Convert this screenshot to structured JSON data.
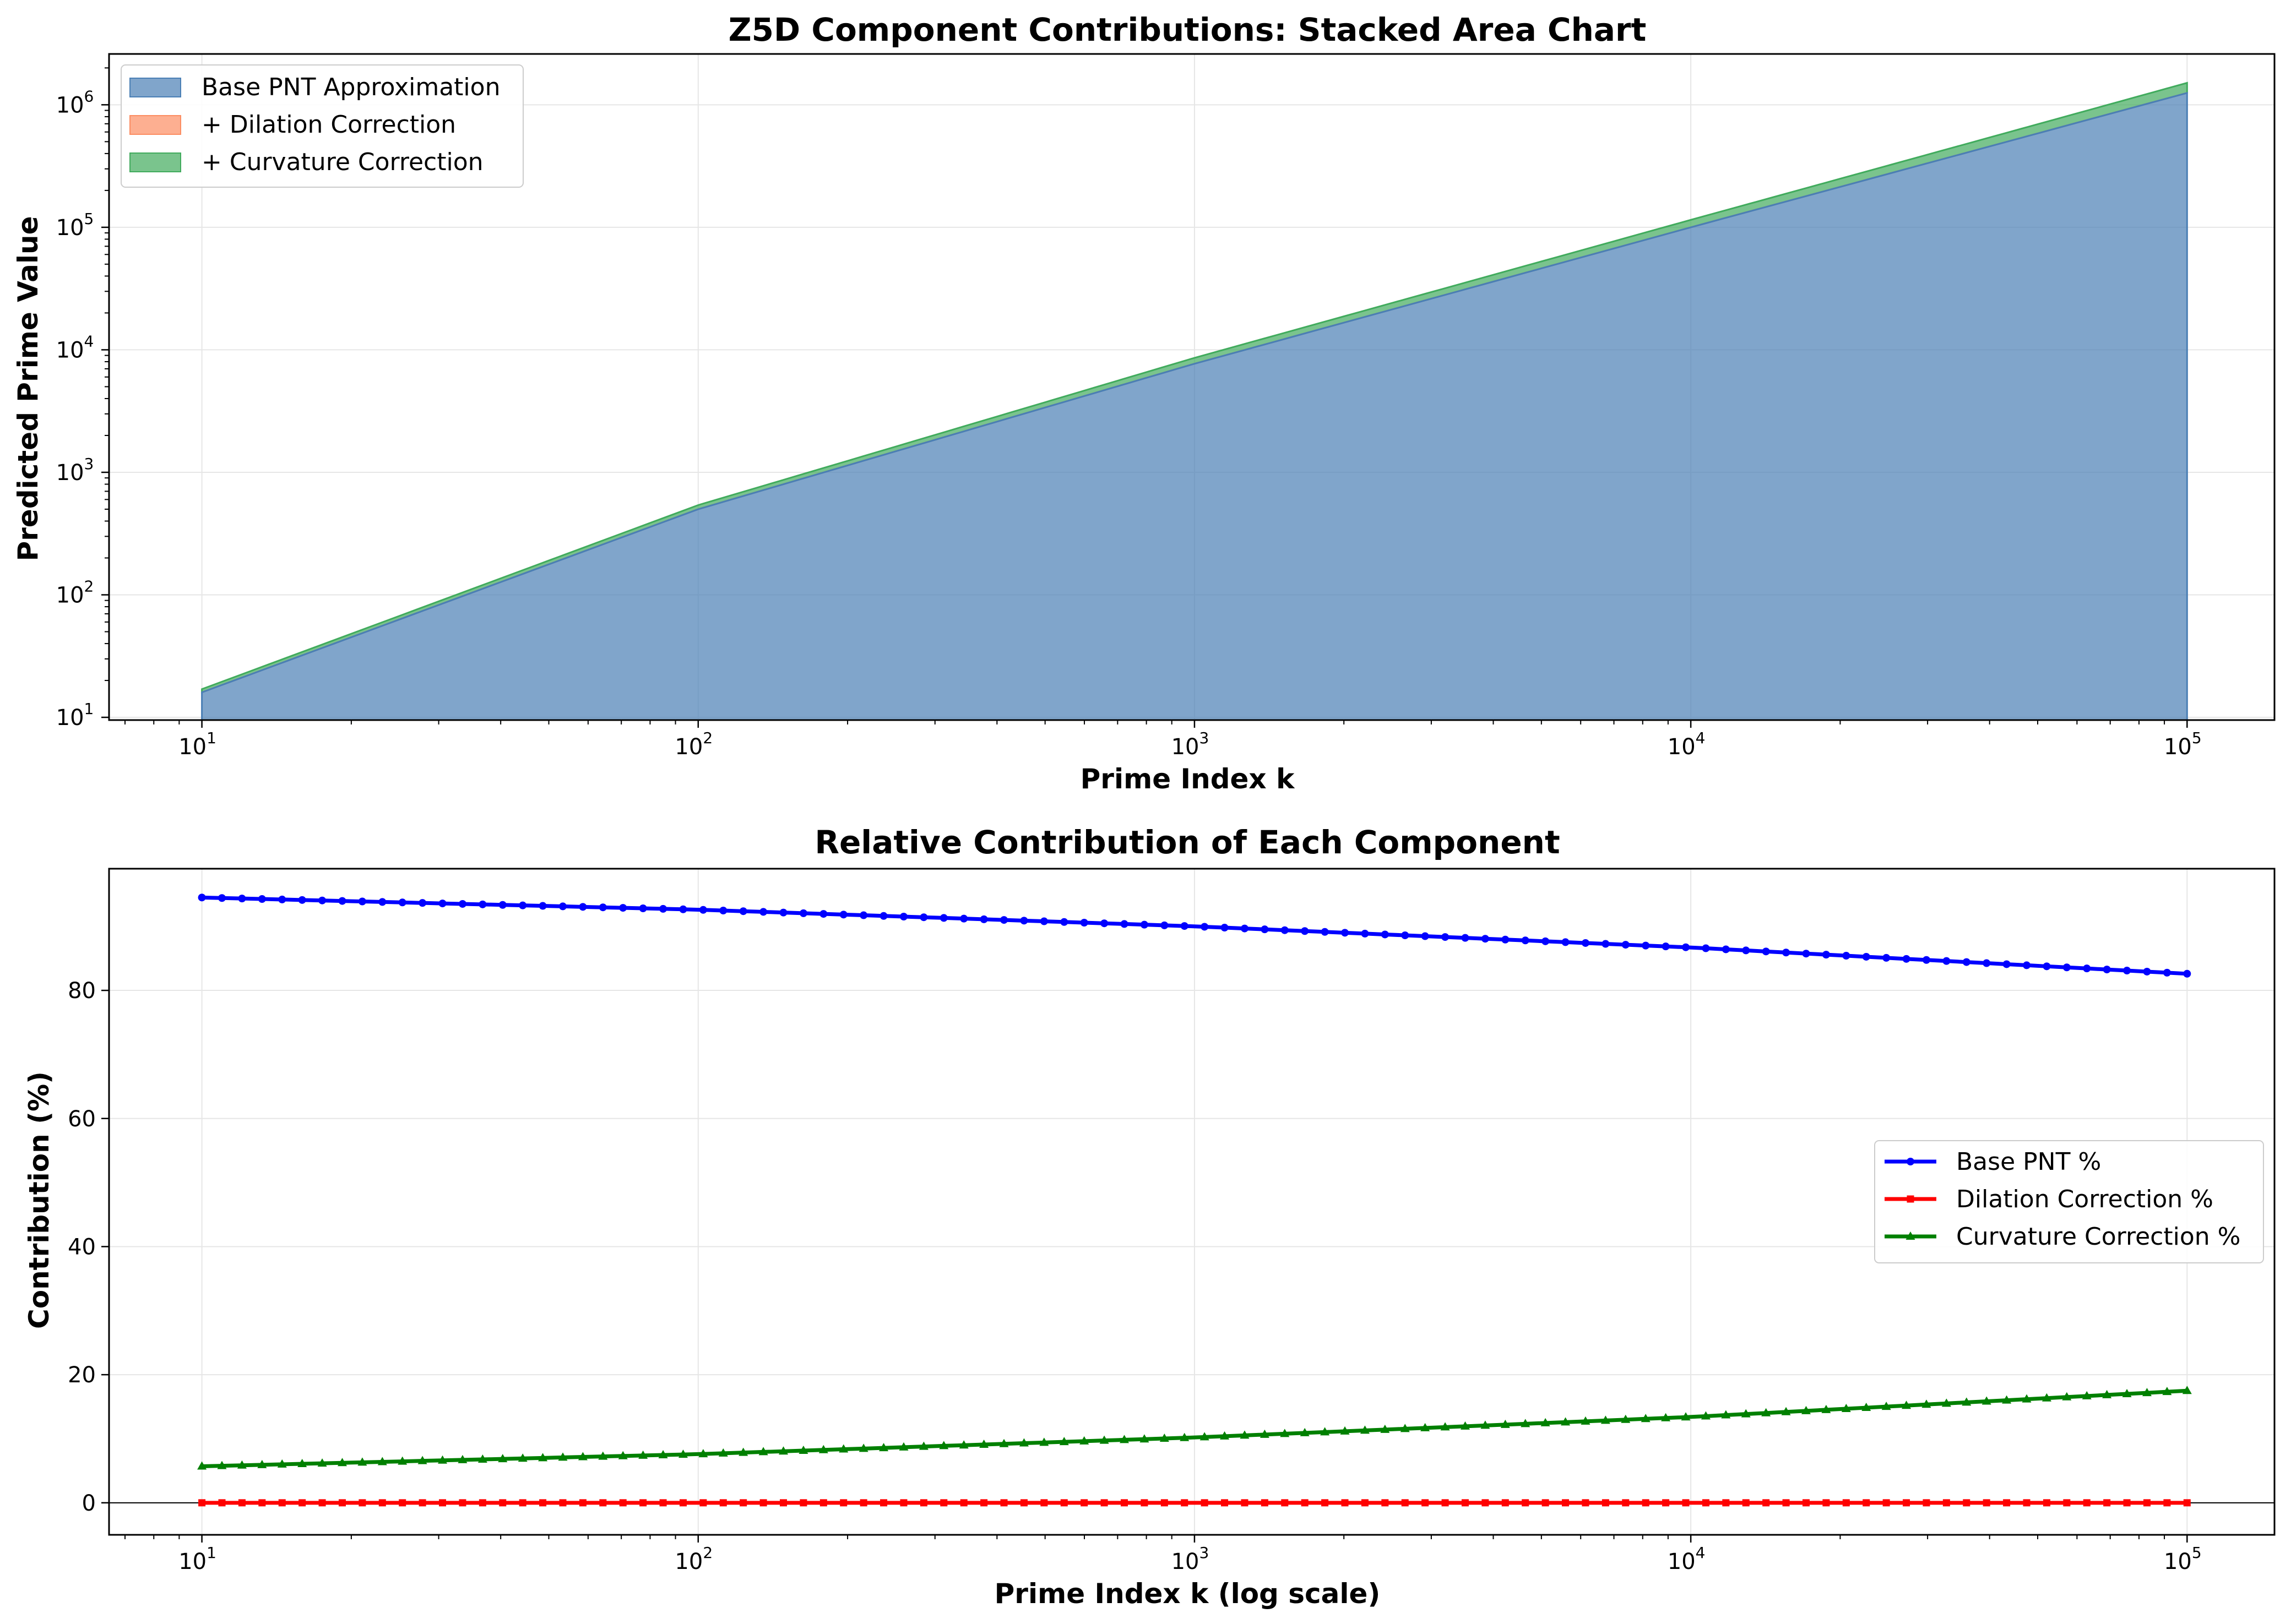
{
  "chart_data": [
    {
      "type": "area",
      "stacked": true,
      "title": "Z5D Component Contributions: Stacked Area Chart",
      "xlabel": "Prime Index k",
      "ylabel": "Predicted Prime Value",
      "xscale": "log",
      "yscale": "log",
      "xlim": [
        6.5,
        150000
      ],
      "ylim": [
        9.5,
        2600000
      ],
      "xticks": [
        {
          "base": "10",
          "exp": "1"
        },
        {
          "base": "10",
          "exp": "2"
        },
        {
          "base": "10",
          "exp": "3"
        },
        {
          "base": "10",
          "exp": "4"
        },
        {
          "base": "10",
          "exp": "5"
        }
      ],
      "yticks": [
        {
          "base": "10",
          "exp": "1"
        },
        {
          "base": "10",
          "exp": "2"
        },
        {
          "base": "10",
          "exp": "3"
        },
        {
          "base": "10",
          "exp": "4"
        },
        {
          "base": "10",
          "exp": "5"
        },
        {
          "base": "10",
          "exp": "6"
        }
      ],
      "grid": true,
      "legend_position": "upper-left",
      "x": [
        10,
        100,
        1000,
        10000,
        100000
      ],
      "series": [
        {
          "name": "Base PNT Approximation",
          "color": "#4a7fb5",
          "values": [
            16,
            500,
            7700,
            100000,
            1250000
          ]
        },
        {
          "name": "+ Dilation Correction",
          "color": "#fc8d62",
          "values": [
            0,
            0,
            0,
            0,
            0
          ]
        },
        {
          "name": "+ Curvature Correction",
          "color": "#41ab5d",
          "values": [
            1,
            40,
            900,
            15000,
            260000
          ]
        }
      ]
    },
    {
      "type": "line",
      "title": "Relative Contribution of Each Component",
      "xlabel": "Prime Index k (log scale)",
      "ylabel": "Contribution (%)",
      "xscale": "log",
      "xlim": [
        6.5,
        150000
      ],
      "ylim": [
        -5,
        99
      ],
      "xticks": [
        {
          "base": "10",
          "exp": "1"
        },
        {
          "base": "10",
          "exp": "2"
        },
        {
          "base": "10",
          "exp": "3"
        },
        {
          "base": "10",
          "exp": "4"
        },
        {
          "base": "10",
          "exp": "5"
        }
      ],
      "yticks": [
        "0",
        "20",
        "40",
        "60",
        "80"
      ],
      "grid": true,
      "legend_position": "center-right",
      "x": [
        10,
        100,
        1000,
        10000,
        100000
      ],
      "series": [
        {
          "name": "Base PNT %",
          "color": "#0000ff",
          "marker": "circle",
          "values": [
            94.5,
            92.6,
            90.0,
            86.7,
            82.6
          ]
        },
        {
          "name": "Dilation Correction %",
          "color": "#ff0000",
          "marker": "square",
          "values": [
            0,
            0,
            0,
            0,
            0
          ]
        },
        {
          "name": "Curvature Correction %",
          "color": "#008000",
          "marker": "triangle",
          "values": [
            5.7,
            7.6,
            10.2,
            13.4,
            17.5
          ]
        }
      ]
    }
  ]
}
